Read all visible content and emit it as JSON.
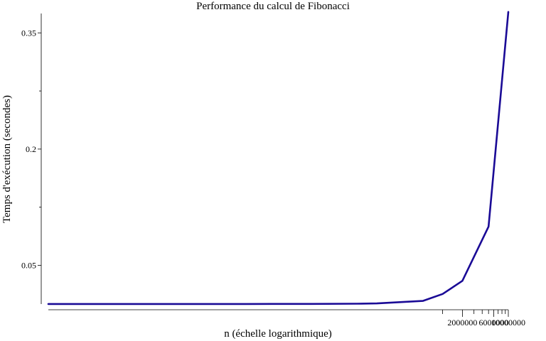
{
  "chart_data": {
    "type": "line",
    "title": "Performance du calcul de Fibonacci",
    "xlabel": "n (échelle logarithmique)",
    "ylabel": "Temps d'exécution (secondes)",
    "xscale": "log",
    "xlim": [
      1,
      10000000
    ],
    "ylim": [
      0,
      0.375
    ],
    "grid": false,
    "line_color": "#1a0a96",
    "x": [
      1,
      10,
      100,
      1000,
      10000,
      50000,
      100000,
      500000,
      1000000,
      2000000,
      5000000,
      10000000
    ],
    "y": [
      0.0001,
      0.0001,
      0.0001,
      0.0001,
      0.0002,
      0.0005,
      0.0008,
      0.004,
      0.013,
      0.03,
      0.1,
      0.377
    ],
    "x_tick_labels": [
      {
        "value": 2000000,
        "label": "2000000"
      },
      {
        "value": 6000000,
        "label": "6000000"
      },
      {
        "value": 10000000,
        "label": "10000000"
      }
    ],
    "x_minor_ticks": [
      1000000,
      3000000,
      4000000,
      5000000,
      7000000,
      8000000,
      9000000
    ],
    "y_ticks": [
      {
        "value": 0.05,
        "label": "0.05"
      },
      {
        "value": 0.2,
        "label": "0.2"
      },
      {
        "value": 0.35,
        "label": "0.35"
      }
    ],
    "y_minor_ticks": [
      0.125,
      0.275
    ]
  }
}
